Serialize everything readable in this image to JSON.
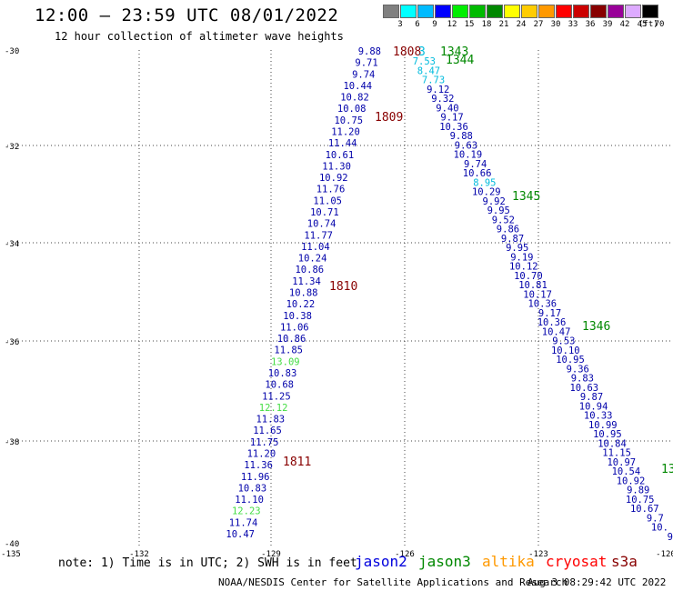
{
  "header": {
    "title": "12:00 – 23:59 UTC 08/01/2022",
    "subtitle": "12 hour collection of altimeter wave heights"
  },
  "legend": {
    "values": [
      "3",
      "6",
      "9",
      "12",
      "15",
      "18",
      "21",
      "24",
      "27",
      "30",
      "33",
      "36",
      "39",
      "42",
      "45",
      "70"
    ],
    "colors": [
      "#808080",
      "#00ffff",
      "#00bbff",
      "#0000ff",
      "#00ee00",
      "#00bb00",
      "#008800",
      "#ffff00",
      "#ffcc00",
      "#ff9900",
      "#ff0000",
      "#cc0000",
      "#880000",
      "#990099",
      "#ddaaff",
      "#000000"
    ],
    "unit": "(ft)"
  },
  "axes": {
    "lat_labels": [
      "-30",
      "-32",
      "-34",
      "-36",
      "-38",
      "-40"
    ],
    "lon_labels": [
      "-135",
      "-132",
      "-129",
      "-126",
      "-123",
      "-120"
    ]
  },
  "tracks": [
    {
      "name": "west-descending",
      "heights": [
        "9.88",
        "9.71",
        "9.74",
        "10.44",
        "10.82",
        "10.08",
        "10.75",
        "11.20",
        "11.44",
        "10.61",
        "11.30",
        "10.92",
        "11.76",
        "11.05",
        "10.71",
        "10.74",
        "11.77",
        "11.04",
        "10.24",
        "10.86",
        "11.34",
        "10.88",
        "10.22",
        "10.38",
        "11.06",
        "10.86",
        "11.85",
        "13.09",
        "10.83",
        "10.68",
        "11.25",
        "12.12",
        "11.83",
        "11.65",
        "11.75",
        "11.20",
        "11.36",
        "11.96",
        "10.83",
        "11.10",
        "12.23",
        "11.74",
        "10.47"
      ],
      "colors": [
        "#0000aa",
        "#0000aa",
        "#0000aa",
        "#0000aa",
        "#0000aa",
        "#0000aa",
        "#0000aa",
        "#0000aa",
        "#0000aa",
        "#0000aa",
        "#0000aa",
        "#0000aa",
        "#0000aa",
        "#0000aa",
        "#0000aa",
        "#0000aa",
        "#0000aa",
        "#0000aa",
        "#0000aa",
        "#0000aa",
        "#0000aa",
        "#0000aa",
        "#0000aa",
        "#0000aa",
        "#0000aa",
        "#0000aa",
        "#0000aa",
        "#44dd44",
        "#0000aa",
        "#0000aa",
        "#0000aa",
        "#44dd44",
        "#0000aa",
        "#0000aa",
        "#0000aa",
        "#0000aa",
        "#0000aa",
        "#0000aa",
        "#0000aa",
        "#0000aa",
        "#44dd44",
        "#0000aa",
        "#0000aa"
      ]
    },
    {
      "name": "east-ascending",
      "heights": [
        "7.53",
        "8.47",
        "7.73",
        "9.12",
        "9.32",
        "9.40",
        "9.17",
        "10.36",
        "9.88",
        "9.63",
        "10.19",
        "9.74",
        "10.66",
        "8.95",
        "10.29",
        "9.92",
        "9.95",
        "9.52",
        "9.86",
        "9.87",
        "9.95",
        "9.19",
        "10.12",
        "10.70",
        "10.81",
        "10.17",
        "10.36",
        "9.17",
        "10.36",
        "10.47",
        "9.53",
        "10.10",
        "10.95",
        "9.36",
        "9.83",
        "10.63",
        "9.87",
        "10.94",
        "10.33",
        "10.99",
        "10.95",
        "10.84",
        "11.15",
        "10.97",
        "10.54",
        "10.92",
        "9.89",
        "10.75",
        "10.67",
        "9.7",
        "10.",
        "9"
      ],
      "colors": [
        "#00bbdd",
        "#00bbdd",
        "#00bbdd",
        "#0000aa",
        "#0000aa",
        "#0000aa",
        "#0000aa",
        "#0000aa",
        "#0000aa",
        "#0000aa",
        "#0000aa",
        "#0000aa",
        "#0000aa",
        "#00bbdd",
        "#0000aa",
        "#0000aa",
        "#0000aa",
        "#0000aa",
        "#0000aa",
        "#0000aa",
        "#0000aa",
        "#0000aa",
        "#0000aa",
        "#0000aa",
        "#0000aa",
        "#0000aa",
        "#0000aa",
        "#0000aa",
        "#0000aa",
        "#0000aa",
        "#0000aa",
        "#0000aa",
        "#0000aa",
        "#0000aa",
        "#0000aa",
        "#0000aa",
        "#0000aa",
        "#0000aa",
        "#0000aa",
        "#0000aa",
        "#0000aa",
        "#0000aa",
        "#0000aa",
        "#0000aa",
        "#0000aa",
        "#0000aa",
        "#0000aa",
        "#0000aa",
        "#0000aa",
        "#0000aa",
        "#0000aa",
        "#0000aa"
      ]
    }
  ],
  "pass_times": [
    {
      "label": "1808",
      "color": "#880000"
    },
    {
      "label": "1809",
      "color": "#880000"
    },
    {
      "label": "1810",
      "color": "#880000"
    },
    {
      "label": "1811",
      "color": "#880000"
    },
    {
      "label": "1343",
      "color": "#008800"
    },
    {
      "label": "1344",
      "color": "#008800"
    },
    {
      "label": "1345",
      "color": "#008800"
    },
    {
      "label": "1346",
      "color": "#008800"
    },
    {
      "label": "13",
      "color": "#008800"
    },
    {
      "label": "3",
      "color": "#00bbdd"
    }
  ],
  "footer": {
    "note": "note:  1) Time is in UTC; 2) SWH is in feet",
    "satellites": [
      {
        "name": "jason2",
        "color": "#0000dd"
      },
      {
        "name": "jason3",
        "color": "#008800"
      },
      {
        "name": "altika",
        "color": "#ff9900"
      },
      {
        "name": "cryosat",
        "color": "#ff0000"
      },
      {
        "name": "s3a",
        "color": "#880000"
      }
    ],
    "credit": "NOAA/NESDIS Center for Satellite Applications and Research",
    "timestamp": "Aug  3 08:29:42 UTC 2022"
  }
}
